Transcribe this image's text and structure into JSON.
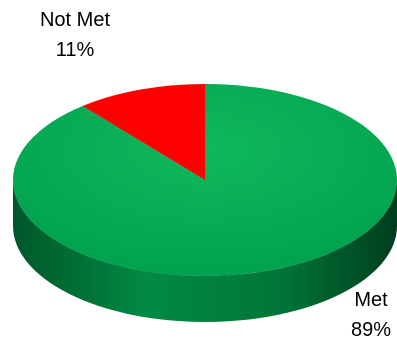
{
  "chart_data": {
    "type": "pie",
    "style": "3d",
    "title": "",
    "slices": [
      {
        "label": "Not Met",
        "value": 11,
        "value_label": "11%",
        "color": "#ff0000",
        "side_color": "#b30000"
      },
      {
        "label": "Met",
        "value": 89,
        "value_label": "89%",
        "color": "#00a550",
        "side_color": "#006b2f"
      }
    ],
    "legend": "none",
    "data_labels": "outside"
  }
}
